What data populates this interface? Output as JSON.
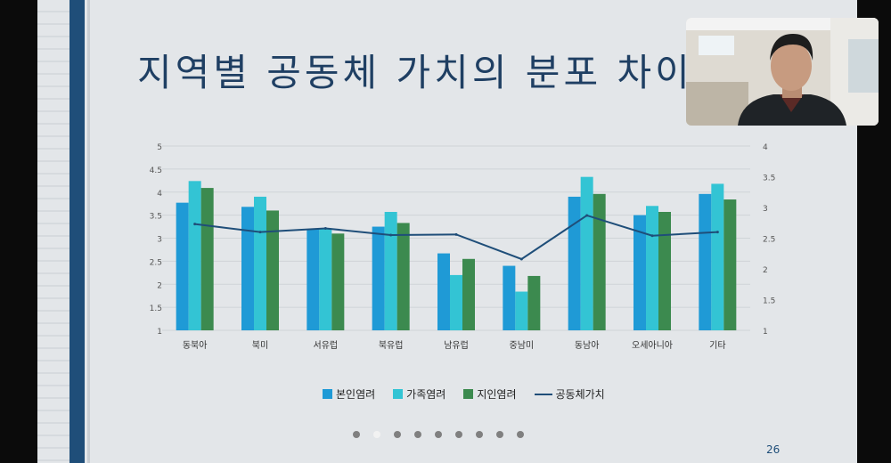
{
  "slide": {
    "title": "지역별 공동체 가치의 분포 차이",
    "page_number": "26",
    "nav_dots": [
      false,
      true,
      false,
      false,
      false,
      false,
      false,
      false,
      false
    ]
  },
  "colors": {
    "series_bon": "#1f9ad6",
    "series_gajok": "#33c4d4",
    "series_jiin": "#3c8a4f",
    "series_line": "#1f4e79",
    "slide_bg": "#e3e6e9",
    "accent_bar": "#1f4e79"
  },
  "chart_data": {
    "type": "bar",
    "categories": [
      "동북아",
      "북미",
      "서유럽",
      "북유럽",
      "남유럽",
      "중남미",
      "동남아",
      "오세아니아",
      "기타"
    ],
    "series": [
      {
        "name": "본인염려",
        "type": "bar",
        "axis": "left",
        "values": [
          3.77,
          3.68,
          3.2,
          3.25,
          2.67,
          2.4,
          3.9,
          3.5,
          3.96
        ]
      },
      {
        "name": "가족염려",
        "type": "bar",
        "axis": "left",
        "values": [
          4.24,
          3.9,
          3.2,
          3.57,
          2.2,
          1.84,
          4.33,
          3.7,
          4.18
        ]
      },
      {
        "name": "지인염려",
        "type": "bar",
        "axis": "left",
        "values": [
          4.09,
          3.6,
          3.1,
          3.33,
          2.55,
          2.18,
          3.96,
          3.57,
          3.84
        ]
      },
      {
        "name": "공동체가치",
        "type": "line",
        "axis": "right",
        "values": [
          2.73,
          2.6,
          2.66,
          2.55,
          2.56,
          2.16,
          2.87,
          2.54,
          2.6
        ]
      }
    ],
    "y_left": {
      "min": 1,
      "max": 5,
      "ticks": [
        "1",
        "1.5",
        "2",
        "2.5",
        "3",
        "3.5",
        "4",
        "4.5",
        "5"
      ]
    },
    "y_right": {
      "min": 1,
      "max": 4,
      "ticks": [
        "1",
        "1.5",
        "2",
        "2.5",
        "3",
        "3.5",
        "4"
      ]
    },
    "grid": true,
    "legend_position": "bottom"
  }
}
